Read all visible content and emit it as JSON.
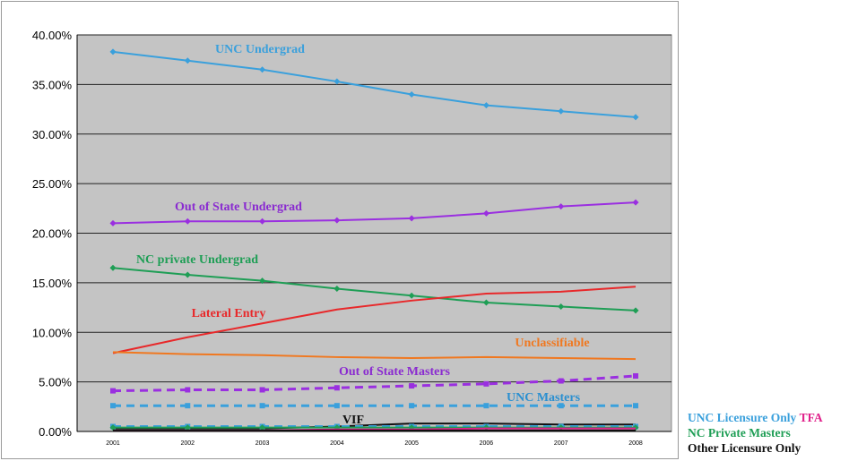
{
  "chart_data": {
    "type": "line",
    "x": [
      "2001",
      "2002",
      "2003",
      "2004",
      "2005",
      "2006",
      "2007",
      "2008"
    ],
    "ylim": [
      0,
      40
    ],
    "y_ticks": [
      "0.00%",
      "5.00%",
      "10.00%",
      "15.00%",
      "20.00%",
      "25.00%",
      "30.00%",
      "35.00%",
      "40.00%"
    ],
    "grid": "horizontal",
    "series": [
      {
        "name": "UNC Undergrad",
        "color": "#3aa0dc",
        "values": [
          38.3,
          37.4,
          36.5,
          35.3,
          34.0,
          32.9,
          32.3,
          31.7
        ],
        "marker": "diamond",
        "dash": false
      },
      {
        "name": "Out of State Undergrad",
        "color": "#9a2fe0",
        "values": [
          21.0,
          21.2,
          21.2,
          21.3,
          21.5,
          22.0,
          22.7,
          23.1
        ],
        "marker": "diamond",
        "dash": false
      },
      {
        "name": "NC private Undergrad",
        "color": "#1e9e55",
        "values": [
          16.5,
          15.8,
          15.2,
          14.4,
          13.7,
          13.0,
          12.6,
          12.2
        ],
        "marker": "diamond",
        "dash": false
      },
      {
        "name": "Lateral Entry",
        "color": "#e8282a",
        "values": [
          7.9,
          9.5,
          10.9,
          12.3,
          13.2,
          13.9,
          14.1,
          14.6
        ],
        "marker": "none",
        "dash": false
      },
      {
        "name": "Unclassifiable",
        "color": "#f07820",
        "values": [
          8.0,
          7.8,
          7.7,
          7.5,
          7.4,
          7.5,
          7.4,
          7.3
        ],
        "marker": "none",
        "dash": false
      },
      {
        "name": "Out of State Masters",
        "color": "#9a2fe0",
        "values": [
          4.1,
          4.2,
          4.2,
          4.4,
          4.6,
          4.8,
          5.1,
          5.6
        ],
        "marker": "square",
        "dash": true
      },
      {
        "name": "UNC Masters",
        "color": "#3aa0dc",
        "values": [
          2.6,
          2.6,
          2.6,
          2.6,
          2.6,
          2.6,
          2.6,
          2.6
        ],
        "marker": "square",
        "dash": true
      },
      {
        "name": "VIF",
        "color": "#111111",
        "values": [
          0.3,
          0.3,
          0.3,
          0.5,
          0.8,
          0.8,
          0.7,
          0.7
        ],
        "marker": "none",
        "dash": false
      },
      {
        "name": "UNC Licensure Only",
        "color": "#3aa0dc",
        "values": [
          0.5,
          0.5,
          0.5,
          0.5,
          0.5,
          0.5,
          0.5,
          0.5
        ],
        "marker": "square",
        "dash": true
      },
      {
        "name": "NC Private Masters",
        "color": "#1e9e55",
        "values": [
          0.4,
          0.4,
          0.4,
          0.4,
          0.4,
          0.4,
          0.4,
          0.4
        ],
        "marker": "diamond",
        "dash": false
      },
      {
        "name": "TFA",
        "color": "#e0208a",
        "values": [
          0.1,
          0.1,
          0.1,
          0.2,
          0.2,
          0.3,
          0.3,
          0.3
        ],
        "marker": "none",
        "dash": false
      },
      {
        "name": "Other Licensure Only",
        "color": "#111111",
        "values": [
          0.1,
          0.1,
          0.1,
          0.1,
          0.1,
          0.1,
          0.1,
          0.1
        ],
        "marker": "none",
        "dash": false
      }
    ],
    "annotations": [
      {
        "text": "UNC Undergrad",
        "color": "#3aa0dc"
      },
      {
        "text": "Out of State Undergrad",
        "color": "#8a2bd0"
      },
      {
        "text": "NC private Undergrad",
        "color": "#1e9e55"
      },
      {
        "text": "Lateral Entry",
        "color": "#e8282a"
      },
      {
        "text": "Unclassifiable",
        "color": "#f07820"
      },
      {
        "text": "Out of State Masters",
        "color": "#8a2bd0"
      },
      {
        "text": "UNC Masters",
        "color": "#2a8fd0"
      },
      {
        "text": "VIF",
        "color": "#111111"
      }
    ]
  },
  "side_legend": {
    "row1a": "UNC Licensure  Only",
    "row1a_color": "#3aa0dc",
    "row1b": "TFA",
    "row1b_color": "#e0208a",
    "row2": "NC Private Masters",
    "row2_color": "#1e9e55",
    "row3": "Other Licensure Only",
    "row3_color": "#111111"
  }
}
